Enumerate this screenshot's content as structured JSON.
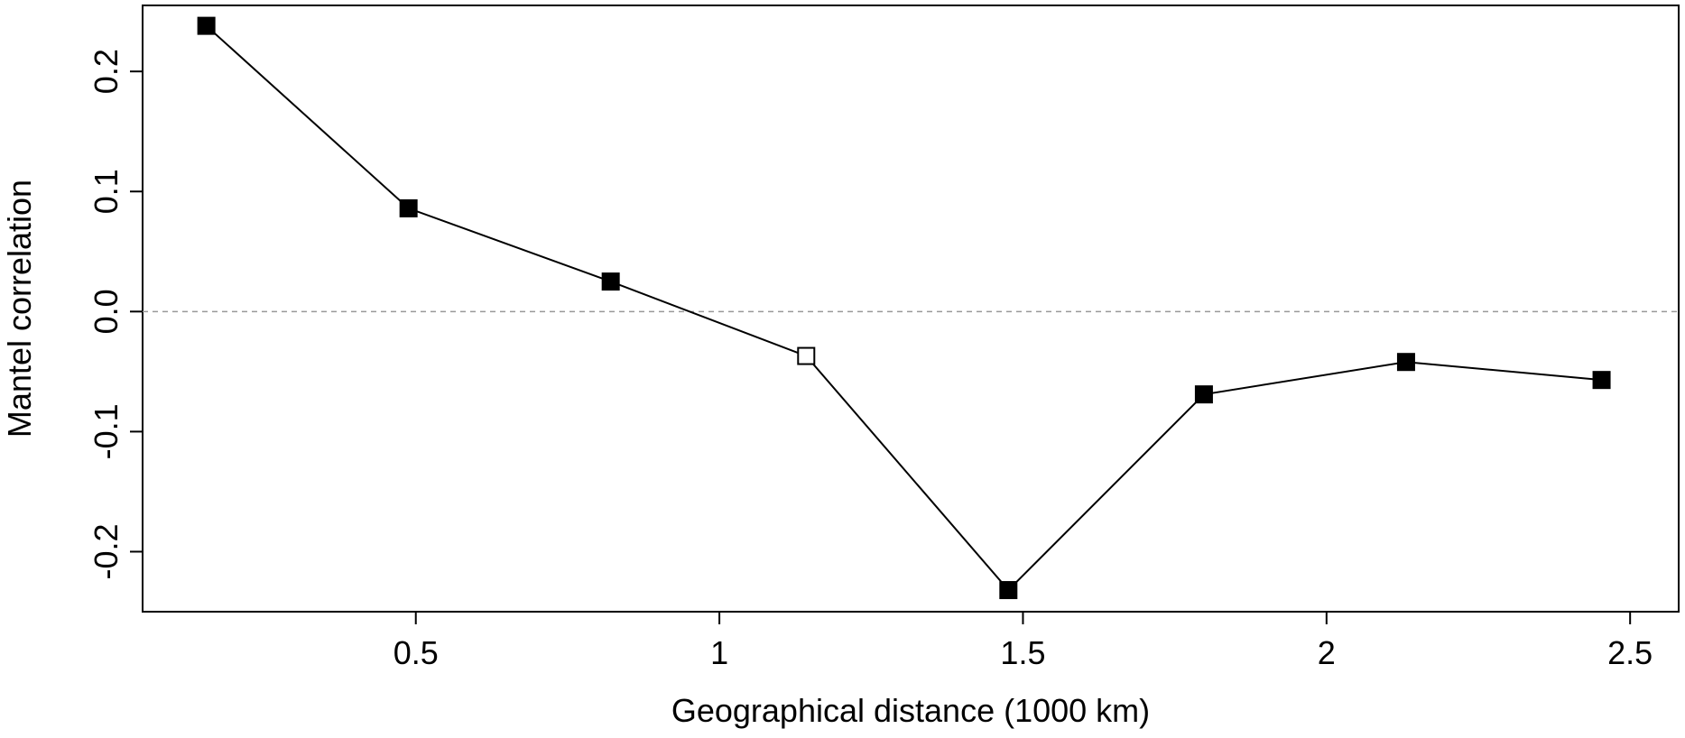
{
  "chart_data": {
    "type": "line",
    "title": "",
    "xlabel": "Geographical distance (1000 km)",
    "ylabel": "Mantel correlation",
    "xlim": [
      0.05,
      2.58
    ],
    "ylim": [
      -0.25,
      0.255
    ],
    "x_ticks": [
      0.5,
      1,
      1.5,
      2,
      2.5
    ],
    "x_tick_labels": [
      "0.5",
      "1",
      "1.5",
      "2",
      "2.5"
    ],
    "y_ticks": [
      0.2,
      0.1,
      0.0,
      -0.1,
      -0.2
    ],
    "y_tick_labels": [
      "0.2",
      "0.1",
      "0.0",
      "-0.1",
      "-0.2"
    ],
    "reference_line": {
      "y": 0.0,
      "style": "dashed",
      "color": "#999999"
    },
    "grid": false,
    "series": [
      {
        "x": [
          0.155,
          0.488,
          0.821,
          1.143,
          1.476,
          1.798,
          2.131,
          2.453
        ],
        "y": [
          0.238,
          0.086,
          0.025,
          -0.037,
          -0.232,
          -0.069,
          -0.042,
          -0.057
        ],
        "significant": [
          true,
          true,
          true,
          false,
          true,
          true,
          true,
          true
        ],
        "line_color": "#000000",
        "marker": "square"
      }
    ]
  }
}
